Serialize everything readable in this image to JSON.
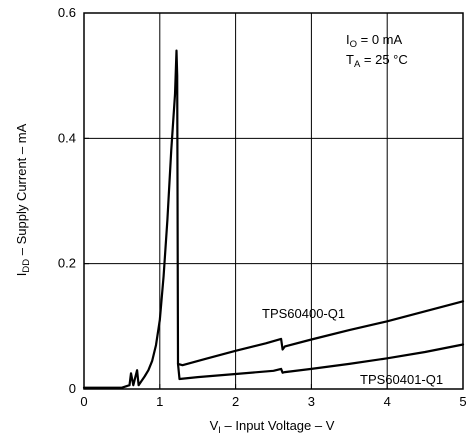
{
  "chart_data": {
    "type": "line",
    "xlim": [
      0,
      5
    ],
    "ylim": [
      0,
      0.6
    ],
    "x_ticks": [
      "0",
      "1",
      "2",
      "3",
      "4",
      "5"
    ],
    "y_ticks": [
      "0",
      "0.2",
      "0.4",
      "0.6"
    ],
    "xlabel": {
      "main": "V",
      "sub": "I",
      "rest": " – Input Voltage – V"
    },
    "ylabel": {
      "main": "I",
      "sub": "DD",
      "rest": "  – Supply Current – mA"
    },
    "grid": true,
    "conditions": [
      {
        "main": "I",
        "sub": "O",
        "rest": " = 0 mA"
      },
      {
        "main": "T",
        "sub": "A",
        "rest": " = 25 °C"
      }
    ],
    "series": [
      {
        "name": "TPS60400-Q1",
        "points": [
          [
            0,
            0.002
          ],
          [
            0.5,
            0.002
          ],
          [
            0.6,
            0.006
          ],
          [
            0.62,
            0.025
          ],
          [
            0.65,
            0.006
          ],
          [
            0.7,
            0.03
          ],
          [
            0.72,
            0.006
          ],
          [
            0.8,
            0.02
          ],
          [
            0.85,
            0.03
          ],
          [
            0.9,
            0.045
          ],
          [
            0.95,
            0.07
          ],
          [
            1.0,
            0.11
          ],
          [
            1.05,
            0.18
          ],
          [
            1.1,
            0.27
          ],
          [
            1.15,
            0.38
          ],
          [
            1.2,
            0.47
          ],
          [
            1.22,
            0.54
          ],
          [
            1.23,
            0.5
          ],
          [
            1.24,
            0.04
          ],
          [
            1.3,
            0.038
          ],
          [
            1.6,
            0.048
          ],
          [
            2.0,
            0.061
          ],
          [
            2.4,
            0.073
          ],
          [
            2.6,
            0.08
          ],
          [
            2.62,
            0.063
          ],
          [
            2.65,
            0.068
          ],
          [
            3.0,
            0.079
          ],
          [
            3.5,
            0.094
          ],
          [
            4.0,
            0.108
          ],
          [
            4.5,
            0.124
          ],
          [
            5.0,
            0.14
          ]
        ]
      },
      {
        "name": "TPS60401-Q1",
        "points": [
          [
            1.24,
            0.04
          ],
          [
            1.26,
            0.016
          ],
          [
            1.5,
            0.019
          ],
          [
            2.0,
            0.024
          ],
          [
            2.5,
            0.029
          ],
          [
            2.6,
            0.032
          ],
          [
            2.62,
            0.026
          ],
          [
            2.65,
            0.027
          ],
          [
            3.0,
            0.032
          ],
          [
            3.5,
            0.04
          ],
          [
            4.0,
            0.049
          ],
          [
            4.5,
            0.059
          ],
          [
            5.0,
            0.071
          ]
        ]
      }
    ],
    "series_labels": [
      "TPS60400-Q1",
      "TPS60401-Q1"
    ]
  }
}
